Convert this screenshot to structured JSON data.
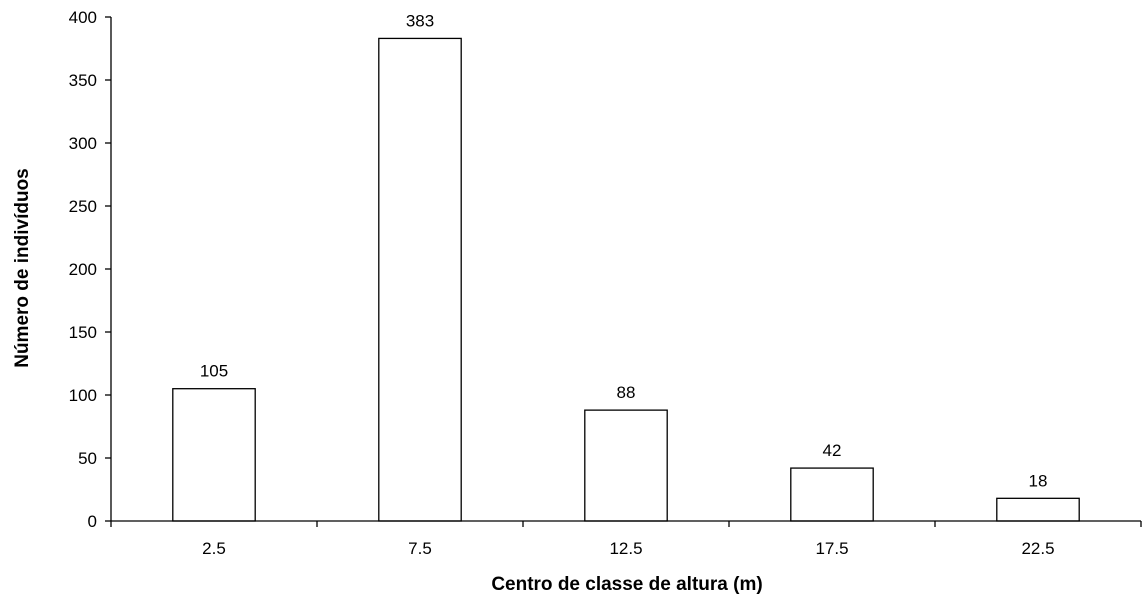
{
  "chart_data": {
    "type": "bar",
    "title": "",
    "xlabel": "Centro de classe de altura (m)",
    "ylabel": "Número de indivíduos",
    "categories": [
      "2.5",
      "7.5",
      "12.5",
      "17.5",
      "22.5"
    ],
    "values": [
      105,
      383,
      88,
      42,
      18
    ],
    "data_labels": [
      "105",
      "383",
      "88",
      "42",
      "18"
    ],
    "ylim": [
      0,
      400
    ],
    "yticks": [
      0,
      50,
      100,
      150,
      200,
      250,
      300,
      350,
      400
    ],
    "grid": false,
    "legend": "none",
    "bar_fill": "#ffffff",
    "bar_stroke": "#000000"
  }
}
